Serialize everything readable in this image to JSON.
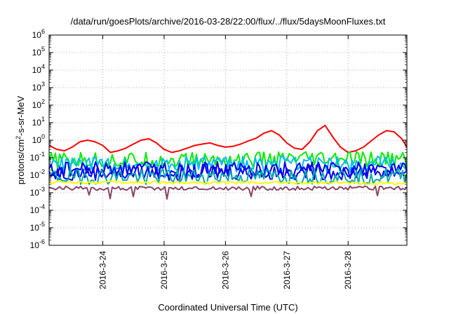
{
  "chart_data": {
    "type": "line",
    "title": "/data/run/goesPlots/archive/2016-03-28/22:00/flux/../flux/5daysMoonFluxes.txt",
    "xlabel": "Coordinated Universal Time (UTC)",
    "ylabel": {
      "base": "protons/cm",
      "sup": "2",
      "rest": "-s-sr-MeV"
    },
    "y_scale": "log",
    "ylim": [
      1e-06,
      1000000.0
    ],
    "y_ticks": [
      {
        "mant": "10",
        "exp": "6"
      },
      {
        "mant": "10",
        "exp": "5"
      },
      {
        "mant": "10",
        "exp": "4"
      },
      {
        "mant": "10",
        "exp": "3"
      },
      {
        "mant": "10",
        "exp": "2"
      },
      {
        "mant": "10",
        "exp": "1"
      },
      {
        "mant": "10",
        "exp": "0"
      },
      {
        "mant": "10",
        "exp": "-1"
      },
      {
        "mant": "10",
        "exp": "-2"
      },
      {
        "mant": "10",
        "exp": "-3"
      },
      {
        "mant": "10",
        "exp": "-4"
      },
      {
        "mant": "10",
        "exp": "-5"
      },
      {
        "mant": "10",
        "exp": "-6"
      }
    ],
    "xlim": [
      "2016-03-23T03:00",
      "2016-03-28T23:00"
    ],
    "x_ticks": [
      "2016-3-24",
      "2016-3-25",
      "2016-3-26",
      "2016-3-27",
      "2016-3-28"
    ],
    "grid": true,
    "legend": "none",
    "series": [
      {
        "color": "#ff0000",
        "points": [
          [
            "2016-03-23T03:00",
            0.5
          ],
          [
            "2016-03-23T06:00",
            0.3
          ],
          [
            "2016-03-23T09:00",
            0.25
          ],
          [
            "2016-03-23T12:00",
            0.4
          ],
          [
            "2016-03-23T15:00",
            0.8
          ],
          [
            "2016-03-23T18:00",
            1.0
          ],
          [
            "2016-03-23T21:00",
            0.8
          ],
          [
            "2016-03-24T00:00",
            0.5
          ],
          [
            "2016-03-24T03:00",
            0.2
          ],
          [
            "2016-03-24T06:00",
            0.25
          ],
          [
            "2016-03-24T09:00",
            0.35
          ],
          [
            "2016-03-24T12:00",
            0.6
          ],
          [
            "2016-03-24T15:00",
            1.0
          ],
          [
            "2016-03-24T18:00",
            1.2
          ],
          [
            "2016-03-24T21:00",
            0.7
          ],
          [
            "2016-03-25T00:00",
            0.3
          ],
          [
            "2016-03-25T03:00",
            0.2
          ],
          [
            "2016-03-25T06:00",
            0.25
          ],
          [
            "2016-03-25T09:00",
            0.35
          ],
          [
            "2016-03-25T12:00",
            0.5
          ],
          [
            "2016-03-25T15:00",
            0.6
          ],
          [
            "2016-03-25T18:00",
            0.7
          ],
          [
            "2016-03-25T21:00",
            0.5
          ],
          [
            "2016-03-26T00:00",
            0.4
          ],
          [
            "2016-03-26T03:00",
            0.45
          ],
          [
            "2016-03-26T06:00",
            0.6
          ],
          [
            "2016-03-26T09:00",
            0.9
          ],
          [
            "2016-03-26T12:00",
            1.3
          ],
          [
            "2016-03-26T15:00",
            2.5
          ],
          [
            "2016-03-26T18:00",
            3.5
          ],
          [
            "2016-03-26T21:00",
            2.0
          ],
          [
            "2016-03-27T00:00",
            0.7
          ],
          [
            "2016-03-27T03:00",
            0.35
          ],
          [
            "2016-03-27T06:00",
            0.3
          ],
          [
            "2016-03-27T09:00",
            0.8
          ],
          [
            "2016-03-27T12:00",
            3.5
          ],
          [
            "2016-03-27T15:00",
            7.0
          ],
          [
            "2016-03-27T18:00",
            1.5
          ],
          [
            "2016-03-27T21:00",
            0.4
          ],
          [
            "2016-03-28T00:00",
            0.2
          ],
          [
            "2016-03-28T03:00",
            0.25
          ],
          [
            "2016-03-28T06:00",
            0.4
          ],
          [
            "2016-03-28T09:00",
            0.9
          ],
          [
            "2016-03-28T12:00",
            2.0
          ],
          [
            "2016-03-28T15:00",
            3.5
          ],
          [
            "2016-03-28T18:00",
            3.0
          ],
          [
            "2016-03-28T21:00",
            1.2
          ],
          [
            "2016-03-28T23:00",
            0.4
          ]
        ]
      },
      {
        "color": "#00ee00",
        "points": [
          [
            "2016-03-23T03:00",
            0.07
          ],
          [
            "2016-03-28T23:00",
            0.08
          ]
        ]
      },
      {
        "color": "#00bbff",
        "points": [
          [
            "2016-03-23T03:00",
            0.04
          ],
          [
            "2016-03-28T23:00",
            0.045
          ]
        ]
      },
      {
        "color": "#0000dd",
        "points": [
          [
            "2016-03-23T03:00",
            0.02
          ],
          [
            "2016-03-28T23:00",
            0.022
          ]
        ]
      },
      {
        "color": "#0000ff",
        "points": [
          [
            "2016-03-23T03:00",
            0.014
          ],
          [
            "2016-03-28T23:00",
            0.016
          ]
        ]
      },
      {
        "color": "#00aaaa",
        "points": [
          [
            "2016-03-23T03:00",
            0.008
          ],
          [
            "2016-03-28T23:00",
            0.009
          ]
        ]
      },
      {
        "color": "#ffff00",
        "points": [
          [
            "2016-03-23T03:00",
            0.004
          ],
          [
            "2016-03-28T23:00",
            0.0035
          ]
        ]
      },
      {
        "color": "#884466",
        "points": [
          [
            "2016-03-23T03:00",
            0.0018
          ],
          [
            "2016-03-28T23:00",
            0.0018
          ]
        ]
      }
    ]
  }
}
